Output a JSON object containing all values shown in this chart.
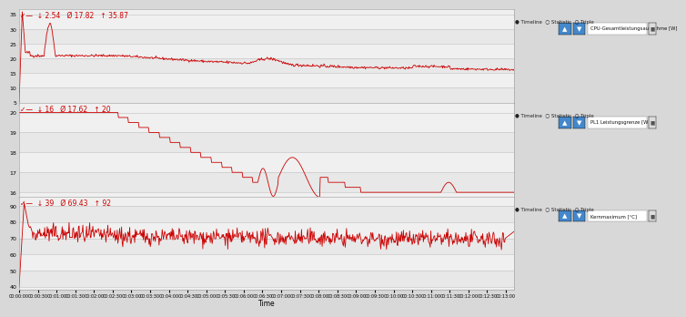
{
  "fig_width": 7.38,
  "fig_height": 3.47,
  "dpi": 100,
  "bg_color": "#d8d8d8",
  "plot_bg_color": "#f0f0f0",
  "grid_color": "#c8c8c8",
  "line_color": "#cc0000",
  "total_seconds": 793,
  "charts": [
    {
      "stats_text": "✓—  ↓ 2.54   Ø 17.82   ↑ 35.87",
      "title_right": "CPU-Gesamtleistungsaufnahme [W]",
      "ylim": [
        5,
        37
      ],
      "yticks": [
        5,
        10,
        15,
        20,
        25,
        30,
        35
      ]
    },
    {
      "stats_text": "✓—  ↓ 16   Ø 17.62   ↑ 20",
      "title_right": "PL1 Leistungsgrenze [W]",
      "ylim": [
        15.8,
        20.5
      ],
      "yticks": [
        16,
        17,
        18,
        19,
        20
      ]
    },
    {
      "stats_text": "✓—  ↓ 39   Ø 69.43   ↑ 92",
      "title_right": "Kernmaximum [°C]",
      "ylim": [
        38,
        96
      ],
      "yticks": [
        40,
        50,
        60,
        70,
        80,
        90
      ]
    }
  ],
  "tick_interval_sec": 30,
  "timeline_text": "● Timeline  ○ Statistic  ○ Triple"
}
